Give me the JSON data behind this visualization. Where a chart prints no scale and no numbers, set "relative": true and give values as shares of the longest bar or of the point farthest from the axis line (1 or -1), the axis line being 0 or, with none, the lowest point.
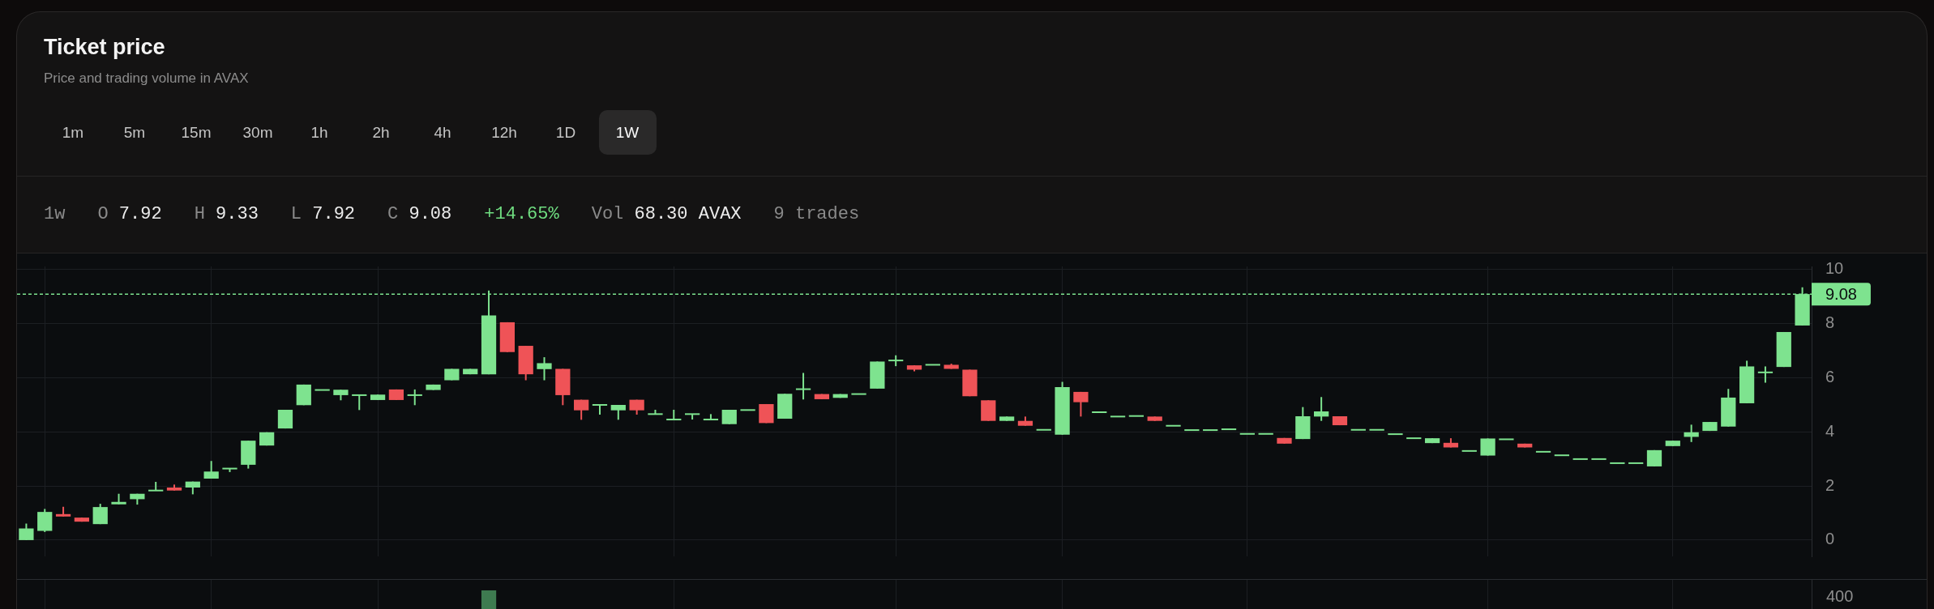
{
  "chart_data": [
    {
      "type": "candlestick",
      "title": "Ticket price",
      "subtitle": "Price and trading volume in AVAX",
      "annotations": [
        "1m",
        "5m",
        "15m",
        "30m",
        "1h",
        "2h",
        "4h",
        "12h",
        "1D",
        "1W",
        "1w",
        "O 7.92",
        "H 9.33",
        "L 7.92",
        "C 9.08",
        "+14.65%",
        "Vol 68.30 AVAX",
        "9 trades"
      ],
      "categories": [
        null,
        null,
        null,
        null,
        null,
        null,
        null,
        null,
        null,
        null,
        null,
        null,
        null,
        null,
        null,
        null,
        null,
        null,
        null,
        null,
        null,
        null,
        null,
        null,
        null,
        null,
        null,
        null,
        null,
        null,
        null,
        null,
        null,
        null,
        null,
        null,
        null,
        null,
        null,
        null,
        null,
        null,
        null,
        null,
        null,
        null,
        null,
        null,
        null,
        null,
        null,
        null,
        null,
        null,
        null,
        null,
        null,
        null,
        null,
        null,
        null,
        null,
        null,
        null,
        null,
        null,
        null,
        null,
        null,
        null,
        null,
        null,
        null,
        null,
        null,
        null,
        null,
        null,
        null,
        null,
        null,
        null,
        null,
        null,
        null,
        null,
        null,
        null,
        null,
        null,
        null,
        null,
        null,
        null,
        null,
        null,
        null
      ],
      "ohlc": [
        [
          0,
          0.61,
          0,
          0.43
        ],
        [
          0.34,
          1.15,
          0.3,
          1.04
        ],
        [
          0.96,
          1.23,
          0.87,
          0.87
        ],
        [
          0.83,
          0.83,
          0.68,
          0.68
        ],
        [
          0.59,
          1.34,
          0.59,
          1.22
        ],
        [
          1.32,
          1.71,
          1.32,
          1.41
        ],
        [
          1.51,
          1.71,
          1.31,
          1.71
        ],
        [
          1.83,
          2.15,
          1.83,
          1.83
        ],
        [
          1.94,
          2.05,
          1.83,
          1.83
        ],
        [
          1.94,
          2.16,
          1.69,
          2.16
        ],
        [
          2.27,
          2.92,
          2.27,
          2.53
        ],
        [
          2.64,
          2.64,
          2.51,
          2.64
        ],
        [
          2.78,
          3.67,
          2.64,
          3.67
        ],
        [
          3.49,
          3.98,
          3.49,
          3.98
        ],
        [
          4.12,
          4.81,
          4.12,
          4.81
        ],
        [
          4.98,
          5.74,
          4.98,
          5.74
        ],
        [
          5.54,
          5.54,
          5.54,
          5.54
        ],
        [
          5.35,
          5.55,
          5.16,
          5.55
        ],
        [
          5.35,
          5.35,
          4.8,
          5.35
        ],
        [
          5.17,
          5.37,
          5.17,
          5.37
        ],
        [
          5.56,
          5.56,
          5.17,
          5.17
        ],
        [
          5.35,
          5.56,
          4.98,
          5.35
        ],
        [
          5.54,
          5.74,
          5.54,
          5.74
        ],
        [
          5.9,
          6.32,
          5.9,
          6.32
        ],
        [
          6.12,
          6.32,
          6.12,
          6.32
        ],
        [
          6.12,
          9.21,
          6.12,
          8.29
        ],
        [
          8.04,
          8.04,
          6.94,
          6.94
        ],
        [
          7.17,
          7.17,
          5.9,
          6.12
        ],
        [
          6.31,
          6.75,
          5.9,
          6.53
        ],
        [
          6.32,
          6.32,
          4.98,
          5.35
        ],
        [
          5.18,
          5.18,
          4.44,
          4.79
        ],
        [
          4.99,
          4.99,
          4.63,
          4.99
        ],
        [
          4.79,
          4.99,
          4.44,
          4.99
        ],
        [
          5.18,
          5.18,
          4.63,
          4.79
        ],
        [
          4.65,
          4.81,
          4.65,
          4.65
        ],
        [
          4.45,
          4.81,
          4.45,
          4.45
        ],
        [
          4.65,
          4.65,
          4.45,
          4.65
        ],
        [
          4.45,
          4.65,
          4.45,
          4.45
        ],
        [
          4.28,
          4.81,
          4.28,
          4.81
        ],
        [
          4.8,
          4.8,
          4.8,
          4.8
        ],
        [
          5.02,
          5.02,
          4.32,
          4.32
        ],
        [
          4.48,
          5.4,
          4.48,
          5.4
        ],
        [
          5.57,
          6.17,
          5.19,
          5.57
        ],
        [
          5.39,
          5.39,
          5.2,
          5.2
        ],
        [
          5.25,
          5.39,
          5.25,
          5.39
        ],
        [
          5.39,
          5.39,
          5.39,
          5.39
        ],
        [
          5.59,
          6.59,
          5.59,
          6.59
        ],
        [
          6.63,
          6.82,
          6.42,
          6.63
        ],
        [
          6.45,
          6.45,
          6.23,
          6.29
        ],
        [
          6.47,
          6.47,
          6.47,
          6.47
        ],
        [
          6.47,
          6.51,
          6.32,
          6.32
        ],
        [
          6.29,
          6.29,
          5.31,
          5.31
        ],
        [
          5.16,
          5.16,
          4.4,
          4.4
        ],
        [
          4.4,
          4.56,
          4.4,
          4.56
        ],
        [
          4.4,
          4.56,
          4.22,
          4.22
        ],
        [
          4.07,
          4.07,
          4.07,
          4.07
        ],
        [
          3.89,
          5.84,
          3.89,
          5.65
        ],
        [
          5.47,
          5.47,
          4.56,
          5.09
        ],
        [
          4.72,
          4.72,
          4.72,
          4.72
        ],
        [
          4.56,
          4.56,
          4.56,
          4.56
        ],
        [
          4.58,
          4.58,
          4.58,
          4.58
        ],
        [
          4.56,
          4.56,
          4.4,
          4.4
        ],
        [
          4.22,
          4.22,
          4.22,
          4.22
        ],
        [
          4.06,
          4.06,
          4.06,
          4.06
        ],
        [
          4.06,
          4.06,
          4.06,
          4.06
        ],
        [
          4.09,
          4.09,
          4.09,
          4.09
        ],
        [
          3.92,
          3.92,
          3.92,
          3.92
        ],
        [
          3.92,
          3.92,
          3.92,
          3.92
        ],
        [
          3.77,
          3.77,
          3.56,
          3.56
        ],
        [
          3.73,
          4.91,
          3.73,
          4.57
        ],
        [
          4.56,
          5.28,
          4.4,
          4.75
        ],
        [
          4.57,
          4.57,
          4.24,
          4.24
        ],
        [
          4.07,
          4.07,
          4.07,
          4.07
        ],
        [
          4.07,
          4.07,
          4.07,
          4.07
        ],
        [
          3.91,
          3.91,
          3.91,
          3.91
        ],
        [
          3.76,
          3.76,
          3.76,
          3.76
        ],
        [
          3.58,
          3.76,
          3.58,
          3.76
        ],
        [
          3.59,
          3.76,
          3.42,
          3.42
        ],
        [
          3.29,
          3.29,
          3.29,
          3.29
        ],
        [
          3.12,
          3.75,
          3.12,
          3.75
        ],
        [
          3.72,
          3.72,
          3.72,
          3.72
        ],
        [
          3.56,
          3.56,
          3.42,
          3.42
        ],
        [
          3.26,
          3.26,
          3.26,
          3.26
        ],
        [
          3.13,
          3.13,
          3.13,
          3.13
        ],
        [
          2.99,
          2.99,
          2.99,
          2.99
        ],
        [
          2.99,
          2.99,
          2.99,
          2.99
        ],
        [
          2.84,
          2.84,
          2.84,
          2.84
        ],
        [
          2.84,
          2.84,
          2.84,
          2.84
        ],
        [
          2.72,
          3.32,
          2.72,
          3.32
        ],
        [
          3.47,
          3.67,
          3.47,
          3.67
        ],
        [
          3.81,
          4.26,
          3.62,
          3.98
        ],
        [
          4.03,
          4.36,
          4.03,
          4.36
        ],
        [
          4.19,
          5.58,
          4.19,
          5.26
        ],
        [
          5.05,
          6.62,
          5.05,
          6.41
        ],
        [
          6.19,
          6.41,
          5.81,
          6.19
        ],
        [
          6.39,
          7.68,
          6.39,
          7.68
        ],
        [
          7.92,
          9.33,
          7.92,
          9.08
        ]
      ],
      "colors": [
        "#7ee38f",
        "#7ee38f",
        "#ef5357",
        "#ef5357",
        "#7ee38f",
        "#7ee38f",
        "#7ee38f",
        "#7ee38f",
        "#ef5357",
        "#7ee38f",
        "#7ee38f",
        "#7ee38f",
        "#7ee38f",
        "#7ee38f",
        "#7ee38f",
        "#7ee38f",
        "#7ee38f",
        "#7ee38f",
        "#7ee38f",
        "#7ee38f",
        "#ef5357",
        "#7ee38f",
        "#7ee38f",
        "#7ee38f",
        "#7ee38f",
        "#7ee38f",
        "#ef5357",
        "#ef5357",
        "#7ee38f",
        "#ef5357",
        "#ef5357",
        "#7ee38f",
        "#7ee38f",
        "#ef5357",
        "#7ee38f",
        "#7ee38f",
        "#7ee38f",
        "#7ee38f",
        "#7ee38f",
        "#7ee38f",
        "#ef5357",
        "#7ee38f",
        "#7ee38f",
        "#ef5357",
        "#7ee38f",
        "#7ee38f",
        "#7ee38f",
        "#7ee38f",
        "#ef5357",
        "#7ee38f",
        "#ef5357",
        "#ef5357",
        "#ef5357",
        "#7ee38f",
        "#ef5357",
        "#7ee38f",
        "#7ee38f",
        "#ef5357",
        "#7ee38f",
        "#7ee38f",
        "#7ee38f",
        "#ef5357",
        "#7ee38f",
        "#7ee38f",
        "#7ee38f",
        "#7ee38f",
        "#7ee38f",
        "#7ee38f",
        "#ef5357",
        "#7ee38f",
        "#7ee38f",
        "#ef5357",
        "#7ee38f",
        "#7ee38f",
        "#7ee38f",
        "#7ee38f",
        "#7ee38f",
        "#ef5357",
        "#7ee38f",
        "#7ee38f",
        "#7ee38f",
        "#ef5357",
        "#7ee38f",
        "#7ee38f",
        "#7ee38f",
        "#7ee38f",
        "#7ee38f",
        "#7ee38f",
        "#7ee38f",
        "#7ee38f",
        "#7ee38f",
        "#7ee38f",
        "#7ee38f",
        "#7ee38f",
        "#7ee38f",
        "#7ee38f",
        "#7ee38f"
      ],
      "ylim": [
        -0.6,
        10.1
      ],
      "yticks": [
        0,
        2,
        4,
        6,
        8,
        10
      ],
      "grid": true,
      "tick_labels": "y",
      "ref_lines": [
        {
          "axis": "y",
          "value": 9.08,
          "label": "9.08",
          "color": "#7ee38f",
          "line_style": "dashed"
        }
      ]
    },
    {
      "type": "bar",
      "relative": true,
      "annotations": [
        "400"
      ],
      "categories": [
        null,
        null,
        null,
        null,
        null,
        null,
        null,
        null,
        null,
        null,
        null,
        null,
        null,
        null,
        null,
        null,
        null,
        null,
        null,
        null,
        null,
        null,
        null,
        null,
        null,
        null,
        null,
        null,
        null,
        null,
        null,
        null,
        null,
        null,
        null,
        null,
        null,
        null,
        null,
        null,
        null,
        null,
        null,
        null,
        null,
        null,
        null,
        null,
        null,
        null,
        null,
        null,
        null,
        null,
        null,
        null,
        null,
        null,
        null,
        null,
        null,
        null,
        null,
        null,
        null,
        null,
        null,
        null,
        null,
        null,
        null,
        null,
        null,
        null,
        null,
        null,
        null,
        null,
        null,
        null,
        null,
        null,
        null,
        null,
        null,
        null,
        null,
        null,
        null,
        null,
        null,
        null,
        null,
        null,
        null,
        null,
        null
      ],
      "values": [
        null,
        null,
        null,
        null,
        null,
        null,
        null,
        null,
        null,
        null,
        null,
        null,
        null,
        null,
        null,
        null,
        null,
        null,
        null,
        null,
        null,
        null,
        null,
        null,
        null,
        1,
        null,
        null,
        null,
        null,
        null,
        null,
        null,
        null,
        null,
        null,
        null,
        null,
        null,
        null,
        null,
        null,
        null,
        null,
        null,
        null,
        null,
        null,
        null,
        null,
        null,
        null,
        null,
        null,
        null,
        null,
        null,
        null,
        null,
        null,
        null,
        null,
        null,
        null,
        null,
        null,
        null,
        null,
        null,
        null,
        null,
        null,
        null,
        null,
        null,
        null,
        null,
        null,
        null,
        null,
        null,
        null,
        null,
        null,
        null,
        null,
        null,
        null,
        null,
        null,
        null,
        null,
        null,
        null,
        null,
        null,
        null
      ],
      "color": "#3e7b50",
      "grid": "x",
      "tick_labels": false
    }
  ]
}
